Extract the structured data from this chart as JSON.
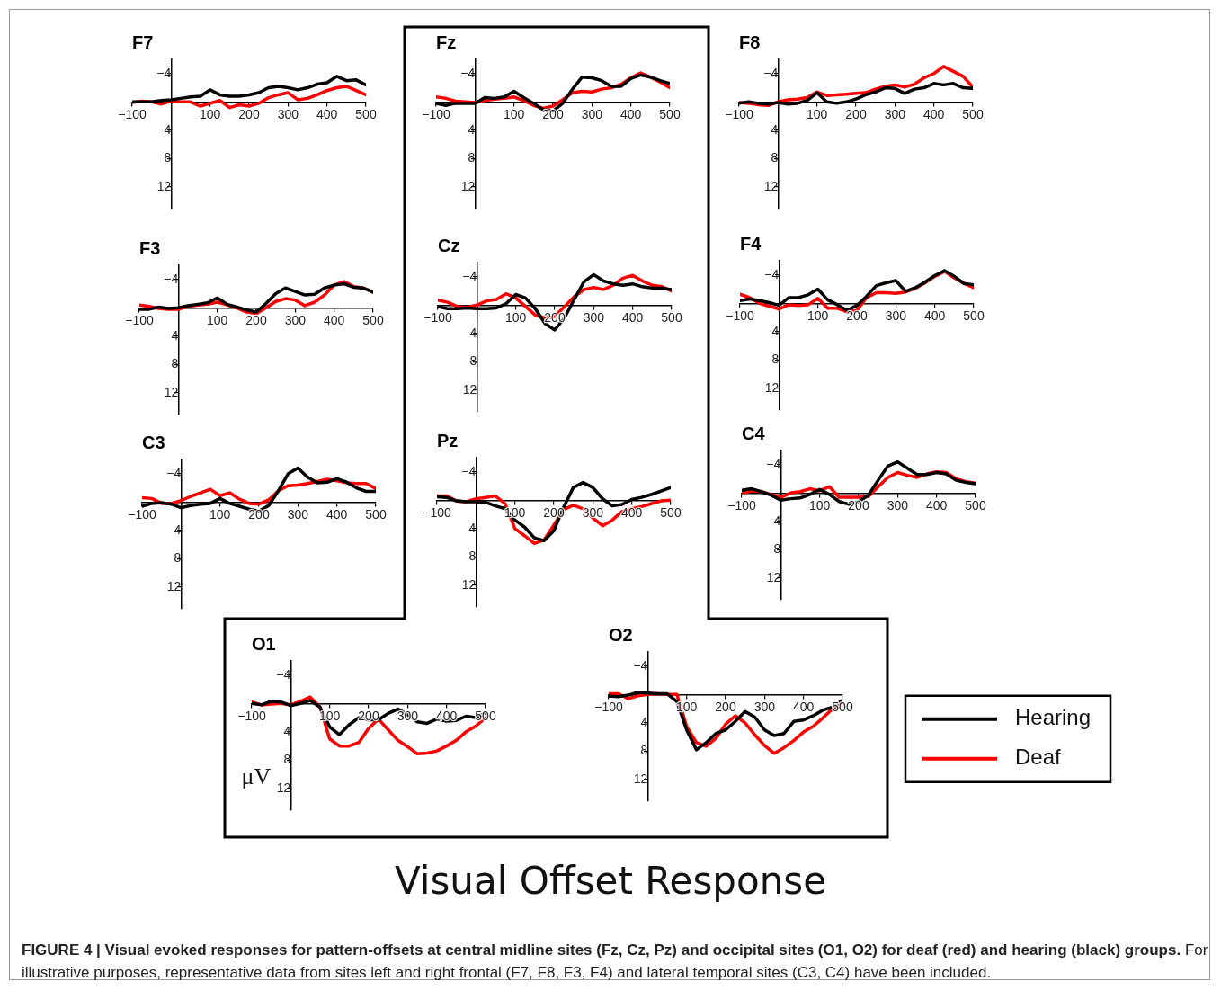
{
  "chart_data": [
    {
      "type": "line",
      "title": "F7",
      "x": [
        -100,
        -75,
        -50,
        -25,
        0,
        25,
        50,
        75,
        100,
        125,
        150,
        175,
        200,
        225,
        250,
        275,
        300,
        325,
        350,
        375,
        400,
        425,
        450,
        475,
        500
      ],
      "xlim": [
        -100,
        500
      ],
      "xticks": [
        -100,
        100,
        200,
        300,
        400,
        500
      ],
      "ylim": [
        15,
        -6
      ],
      "yticks": [
        -4,
        4,
        8,
        12
      ],
      "series": [
        {
          "color": "#000000",
          "values": [
            0,
            0,
            0,
            -0.2,
            -0.3,
            -0.5,
            -0.7,
            -0.8,
            -1.7,
            -1.0,
            -0.8,
            -0.8,
            -1.0,
            -1.3,
            -2.0,
            -2.2,
            -2.0,
            -1.7,
            -2.0,
            -2.5,
            -2.7,
            -3.6,
            -3.0,
            -3.1,
            -2.4
          ]
        },
        {
          "color": "#ff0000",
          "values": [
            0.1,
            -0.1,
            0,
            0.3,
            -0.1,
            0,
            0,
            0.6,
            0.2,
            -0.2,
            0.8,
            0.4,
            0.6,
            0.2,
            -0.6,
            -1.0,
            -1.3,
            -0.3,
            -0.5,
            -1.0,
            -1.6,
            -2.0,
            -2.2,
            -1.6,
            -1.0
          ]
        }
      ]
    },
    {
      "type": "line",
      "title": "Fz",
      "x": [
        -100,
        -75,
        -50,
        -25,
        0,
        25,
        50,
        75,
        100,
        125,
        150,
        175,
        200,
        225,
        250,
        275,
        300,
        325,
        350,
        375,
        400,
        425,
        450,
        475,
        500
      ],
      "xlim": [
        -100,
        500
      ],
      "xticks": [
        -100,
        100,
        200,
        300,
        400,
        500
      ],
      "ylim": [
        15,
        -6
      ],
      "yticks": [
        -4,
        4,
        8,
        12
      ],
      "series": [
        {
          "color": "#000000",
          "values": [
            0.2,
            0.5,
            0.2,
            0.2,
            0.2,
            -0.6,
            -0.5,
            -0.7,
            -1.5,
            -0.6,
            0.2,
            1.1,
            1.3,
            0.2,
            -1.8,
            -3.5,
            -3.4,
            -3.0,
            -2.2,
            -2.2,
            -3.3,
            -3.8,
            -3.5,
            -3.0,
            -2.6
          ]
        },
        {
          "color": "#ff0000",
          "values": [
            -0.7,
            -0.5,
            -0.1,
            0,
            0.1,
            -0.2,
            -0.4,
            -0.5,
            -0.7,
            -0.2,
            0.5,
            0.9,
            0.6,
            -0.3,
            -1.3,
            -1.5,
            -1.4,
            -1.8,
            -2.0,
            -2.5,
            -3.4,
            -4.1,
            -3.5,
            -2.8,
            -2.0
          ]
        }
      ]
    },
    {
      "type": "line",
      "title": "F8",
      "x": [
        -100,
        -75,
        -50,
        -25,
        0,
        25,
        50,
        75,
        100,
        125,
        150,
        175,
        200,
        225,
        250,
        275,
        300,
        325,
        350,
        375,
        400,
        425,
        450,
        475,
        500
      ],
      "xlim": [
        -100,
        500
      ],
      "xticks": [
        -100,
        100,
        200,
        300,
        400,
        500
      ],
      "ylim": [
        15,
        -6
      ],
      "yticks": [
        -4,
        4,
        8,
        12
      ],
      "series": [
        {
          "color": "#000000",
          "values": [
            0.2,
            0,
            0.2,
            0.3,
            0.1,
            0.3,
            0.2,
            -0.2,
            -1.3,
            0,
            0.2,
            0,
            -0.4,
            -1.0,
            -1.4,
            -2.0,
            -1.9,
            -1.2,
            -1.8,
            -2.0,
            -2.6,
            -2.4,
            -2.6,
            -2.0,
            -1.9
          ]
        },
        {
          "color": "#ff0000",
          "values": [
            0.1,
            0.2,
            0.4,
            0.5,
            0,
            -0.3,
            -0.4,
            -0.6,
            -1.4,
            -0.9,
            -1.0,
            -1.1,
            -1.2,
            -1.3,
            -1.8,
            -2.2,
            -2.4,
            -2.1,
            -2.5,
            -3.4,
            -4.0,
            -5.0,
            -4.3,
            -3.6,
            -2.1
          ]
        }
      ]
    },
    {
      "type": "line",
      "title": "F3",
      "x": [
        -100,
        -75,
        -50,
        -25,
        0,
        25,
        50,
        75,
        100,
        125,
        150,
        175,
        200,
        225,
        250,
        275,
        300,
        325,
        350,
        375,
        400,
        425,
        450,
        475,
        500
      ],
      "xlim": [
        -100,
        500
      ],
      "xticks": [
        -100,
        100,
        200,
        300,
        400,
        500
      ],
      "ylim": [
        15,
        -6
      ],
      "yticks": [
        -4,
        4,
        8,
        12
      ],
      "series": [
        {
          "color": "#000000",
          "values": [
            0.2,
            0.2,
            -0.1,
            0.1,
            0,
            -0.3,
            -0.5,
            -0.7,
            -1.4,
            -0.5,
            -0.1,
            0.3,
            0.6,
            -0.6,
            -2.0,
            -2.8,
            -2.3,
            -1.8,
            -1.9,
            -2.8,
            -3.2,
            -3.4,
            -2.9,
            -2.8,
            -2.2
          ]
        },
        {
          "color": "#ff0000",
          "values": [
            -0.4,
            -0.2,
            0.1,
            0.2,
            0.2,
            -0.2,
            -0.4,
            -0.5,
            -0.8,
            -0.4,
            0,
            0.6,
            0.8,
            0,
            -0.9,
            -1.3,
            -1.1,
            -0.3,
            -0.8,
            -1.8,
            -3.2,
            -3.7,
            -3.0,
            -2.8,
            -2.2
          ]
        }
      ]
    },
    {
      "type": "line",
      "title": "Cz",
      "x": [
        -100,
        -75,
        -50,
        -25,
        0,
        25,
        50,
        75,
        100,
        125,
        150,
        175,
        200,
        225,
        250,
        275,
        300,
        325,
        350,
        375,
        400,
        425,
        450,
        475,
        500
      ],
      "xlim": [
        -100,
        500
      ],
      "xticks": [
        -100,
        100,
        200,
        300,
        400,
        500
      ],
      "ylim": [
        15,
        -6
      ],
      "yticks": [
        -4,
        4,
        8,
        12
      ],
      "series": [
        {
          "color": "#000000",
          "values": [
            0.2,
            0.5,
            0.5,
            0.4,
            0.5,
            0.5,
            0.4,
            -0.2,
            -1.5,
            -1.0,
            0.5,
            2.6,
            3.5,
            1.8,
            -0.8,
            -3.3,
            -4.3,
            -3.4,
            -3.0,
            -2.8,
            -3.0,
            -2.6,
            -2.4,
            -2.4,
            -2.2
          ]
        },
        {
          "color": "#ff0000",
          "values": [
            -0.7,
            -0.4,
            0.2,
            0.3,
            0,
            -0.6,
            -0.8,
            -1.6,
            -1.0,
            0.2,
            1.4,
            1.8,
            1.6,
            0.2,
            -1.2,
            -2.2,
            -2.5,
            -2.2,
            -2.8,
            -3.8,
            -4.2,
            -3.4,
            -2.8,
            -2.6,
            -2.0
          ]
        }
      ]
    },
    {
      "type": "line",
      "title": "F4",
      "x": [
        -100,
        -75,
        -50,
        -25,
        0,
        25,
        50,
        75,
        100,
        125,
        150,
        175,
        200,
        225,
        250,
        275,
        300,
        325,
        350,
        375,
        400,
        425,
        450,
        475,
        500
      ],
      "xlim": [
        -100,
        500
      ],
      "xticks": [
        -100,
        100,
        200,
        300,
        400,
        500
      ],
      "ylim": [
        15,
        -6
      ],
      "yticks": [
        -4,
        4,
        8,
        12
      ],
      "series": [
        {
          "color": "#000000",
          "values": [
            -0.4,
            -0.6,
            -0.4,
            -0.1,
            0.3,
            -0.8,
            -0.8,
            -1.2,
            -2.0,
            -0.5,
            0.2,
            1.0,
            0.3,
            -1.0,
            -2.5,
            -2.9,
            -3.2,
            -1.7,
            -2.2,
            -3.0,
            -3.9,
            -4.6,
            -3.8,
            -2.8,
            -2.6
          ]
        },
        {
          "color": "#ff0000",
          "values": [
            -1.3,
            -0.8,
            0,
            0.4,
            0.8,
            0.2,
            0.3,
            0.2,
            -0.7,
            0.7,
            0.7,
            1.2,
            1.0,
            -0.8,
            -1.5,
            -1.5,
            -1.4,
            -1.6,
            -2.1,
            -2.9,
            -3.8,
            -4.5,
            -3.6,
            -2.8,
            -2.2
          ]
        }
      ]
    },
    {
      "type": "line",
      "title": "C3",
      "x": [
        -100,
        -75,
        -50,
        -25,
        0,
        25,
        50,
        75,
        100,
        125,
        150,
        175,
        200,
        225,
        250,
        275,
        300,
        325,
        350,
        375,
        400,
        425,
        450,
        475,
        500
      ],
      "xlim": [
        -100,
        500
      ],
      "xticks": [
        -100,
        100,
        200,
        300,
        400,
        500
      ],
      "ylim": [
        15,
        -6
      ],
      "yticks": [
        -4,
        4,
        8,
        12
      ],
      "series": [
        {
          "color": "#000000",
          "values": [
            0.6,
            0.2,
            0.1,
            0.3,
            0.8,
            0.5,
            0.3,
            0.2,
            -0.5,
            0.2,
            0.6,
            1.0,
            1.3,
            0.5,
            -1.6,
            -4.0,
            -4.8,
            -3.5,
            -2.7,
            -2.8,
            -3.3,
            -2.8,
            -2.0,
            -1.5,
            -1.5
          ]
        },
        {
          "color": "#ff0000",
          "values": [
            -0.6,
            -0.5,
            0.2,
            0.2,
            -0.2,
            -0.8,
            -1.3,
            -1.8,
            -0.9,
            -1.3,
            -0.4,
            0.2,
            0.3,
            -0.3,
            -1.6,
            -2.3,
            -2.4,
            -2.6,
            -2.9,
            -3.2,
            -3.0,
            -2.7,
            -2.6,
            -2.6,
            -1.9
          ]
        }
      ]
    },
    {
      "type": "line",
      "title": "Pz",
      "x": [
        -100,
        -75,
        -50,
        -25,
        0,
        25,
        50,
        75,
        100,
        125,
        150,
        175,
        200,
        225,
        250,
        275,
        300,
        325,
        350,
        375,
        400,
        425,
        450,
        475,
        500
      ],
      "xlim": [
        -100,
        500
      ],
      "xticks": [
        -100,
        100,
        200,
        300,
        400,
        500
      ],
      "ylim": [
        15,
        -6
      ],
      "yticks": [
        -4,
        4,
        8,
        12
      ],
      "series": [
        {
          "color": "#000000",
          "values": [
            -0.5,
            -0.4,
            0.1,
            0.2,
            0.2,
            0.3,
            0.8,
            1.2,
            2.8,
            3.8,
            5.3,
            5.7,
            4.3,
            1.0,
            -1.8,
            -2.5,
            -1.8,
            -0.2,
            0.8,
            0.6,
            -0.1,
            -0.4,
            -0.8,
            -1.3,
            -1.8
          ]
        },
        {
          "color": "#ff0000",
          "values": [
            -0.6,
            -0.6,
            0.1,
            0.2,
            -0.2,
            -0.4,
            -0.6,
            0.5,
            4.0,
            5.0,
            6.1,
            5.6,
            3.5,
            1.3,
            0.7,
            1.2,
            2.5,
            3.6,
            2.8,
            1.6,
            1.2,
            0.9,
            0.5,
            0.1,
            0
          ]
        }
      ]
    },
    {
      "type": "line",
      "title": "C4",
      "x": [
        -100,
        -75,
        -50,
        -25,
        0,
        25,
        50,
        75,
        100,
        125,
        150,
        175,
        200,
        225,
        250,
        275,
        300,
        325,
        350,
        375,
        400,
        425,
        450,
        475,
        500
      ],
      "xlim": [
        -100,
        500
      ],
      "xticks": [
        -100,
        100,
        200,
        300,
        400,
        500
      ],
      "ylim": [
        15,
        -6
      ],
      "yticks": [
        -4,
        4,
        8,
        12
      ],
      "series": [
        {
          "color": "#000000",
          "values": [
            -0.4,
            -0.6,
            -0.2,
            0.3,
            1.0,
            0.8,
            0.7,
            0.2,
            -0.5,
            0.2,
            1.2,
            1.6,
            1.2,
            0.3,
            -1.8,
            -3.8,
            -4.4,
            -3.5,
            -2.6,
            -2.6,
            -2.9,
            -2.7,
            -1.8,
            -1.5,
            -1.3
          ]
        },
        {
          "color": "#ff0000",
          "values": [
            0,
            -0.3,
            -0.2,
            0.2,
            0.6,
            0,
            -0.2,
            -0.6,
            -0.3,
            -0.9,
            0.6,
            0.6,
            0.6,
            0.5,
            -0.9,
            -2.2,
            -2.9,
            -2.5,
            -2.2,
            -2.7,
            -3.0,
            -2.9,
            -2.0,
            -1.6,
            -1.4
          ]
        }
      ]
    },
    {
      "type": "line",
      "title": "O1",
      "ylabel": "μV",
      "x": [
        -100,
        -75,
        -50,
        -25,
        0,
        25,
        50,
        75,
        100,
        125,
        150,
        175,
        200,
        225,
        250,
        275,
        300,
        325,
        350,
        375,
        400,
        425,
        450,
        475,
        500
      ],
      "xlim": [
        -100,
        500
      ],
      "xticks": [
        -100,
        100,
        200,
        300,
        400,
        500
      ],
      "ylim": [
        15,
        -6
      ],
      "yticks": [
        -4,
        4,
        8,
        12
      ],
      "series": [
        {
          "color": "#000000",
          "values": [
            0,
            0.2,
            -0.3,
            -0.2,
            0.3,
            0,
            -0.4,
            0.5,
            3.3,
            4.4,
            3.0,
            2.0,
            2.3,
            2.3,
            1.4,
            0.8,
            1.6,
            2.6,
            2.8,
            2.2,
            2.5,
            2.4,
            1.8,
            2.0,
            1.3
          ]
        },
        {
          "color": "#ff0000",
          "values": [
            -0.2,
            0.2,
            0.1,
            0,
            0.2,
            -0.3,
            -0.9,
            0.5,
            5.0,
            6.0,
            6.0,
            5.5,
            3.5,
            2.2,
            3.7,
            5.2,
            6.1,
            7.1,
            7.0,
            6.7,
            6.0,
            5.2,
            4.0,
            3.2,
            2.0
          ]
        }
      ]
    },
    {
      "type": "line",
      "title": "O2",
      "legend": "right",
      "x": [
        -100,
        -75,
        -50,
        -25,
        0,
        25,
        50,
        75,
        100,
        125,
        150,
        175,
        200,
        225,
        250,
        275,
        300,
        325,
        350,
        375,
        400,
        425,
        450,
        475,
        500
      ],
      "xlim": [
        -100,
        500
      ],
      "xticks": [
        -100,
        100,
        200,
        300,
        400,
        500
      ],
      "ylim": [
        15,
        -6
      ],
      "yticks": [
        -4,
        4,
        8,
        12
      ],
      "series": [
        {
          "name": "Hearing",
          "color": "#000000",
          "values": [
            0.2,
            0.3,
            0.1,
            -0.3,
            -0.2,
            -0.1,
            -0.1,
            1.0,
            5.0,
            7.8,
            6.8,
            5.5,
            5.0,
            3.8,
            2.4,
            3.2,
            5.0,
            5.8,
            5.5,
            3.8,
            3.6,
            3.0,
            2.2,
            1.8,
            0.8
          ]
        },
        {
          "name": "Deaf",
          "color": "#ff0000",
          "values": [
            -0.1,
            -0.1,
            0.6,
            0.2,
            0,
            -0.1,
            0,
            0,
            4.5,
            6.8,
            7.3,
            6.2,
            4.2,
            3.0,
            4.0,
            5.7,
            7.2,
            8.3,
            7.5,
            6.5,
            5.3,
            4.5,
            3.3,
            2.0,
            1.3
          ]
        }
      ]
    },
    {
      "type": "other",
      "title": "Visual Offset Response",
      "annotations": [
        "FIGURE 4 | Visual evoked responses for pattern-offsets at central midline sites (Fz, Cz, Pz) and occipital sites (O1, O2) for deaf (red) and hearing (black) groups.",
        "For illustrative purposes, representative data from sites left and right frontal (F7, F8, F3, F4) and lateral temporal sites (C3, C4) have been included."
      ]
    }
  ]
}
